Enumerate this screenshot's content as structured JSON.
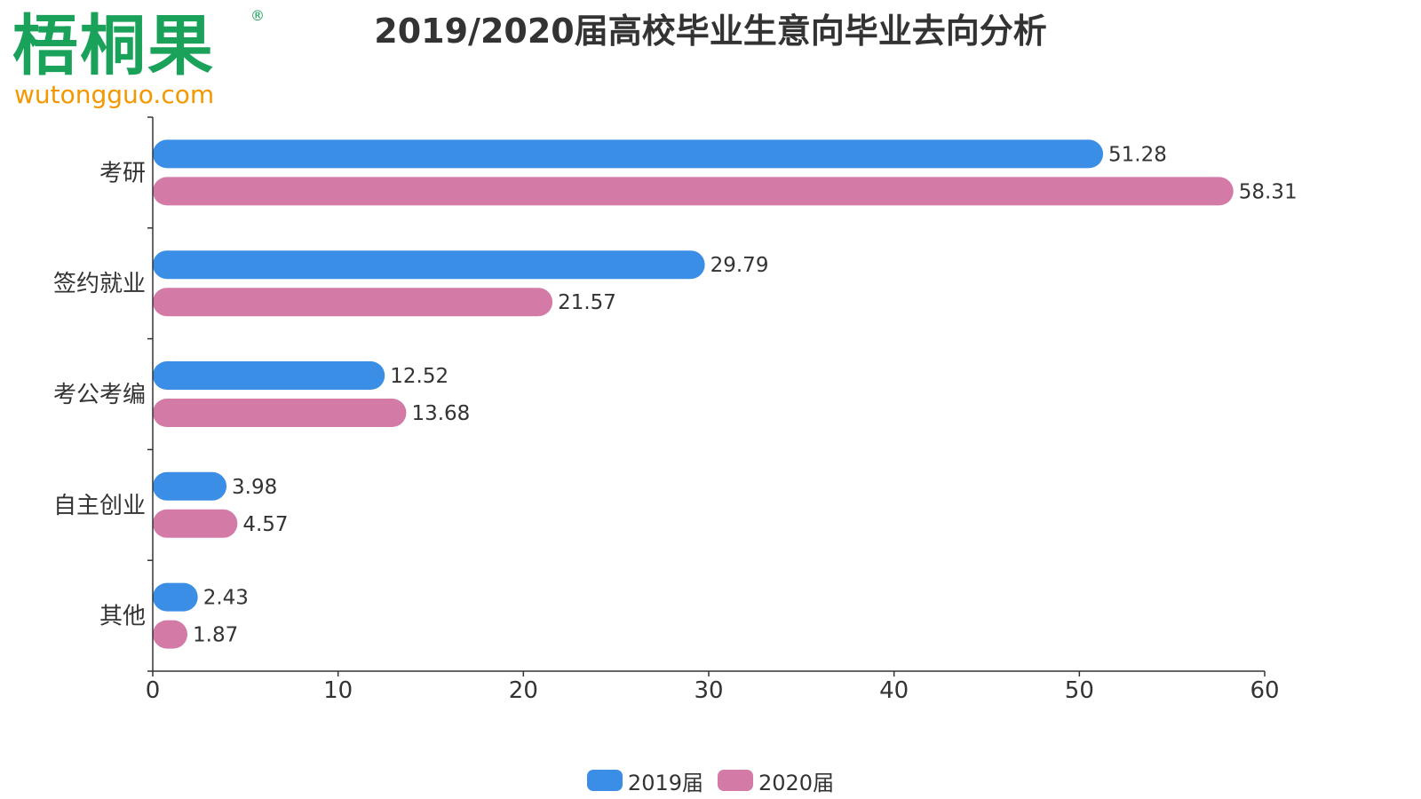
{
  "logo": {
    "text": "梧桐果",
    "registered": "®",
    "url": "wutongguo.com"
  },
  "colors": {
    "series_2019": "#3a8ee6",
    "series_2020": "#d37aa7",
    "text": "#333333",
    "axis": "#333333"
  },
  "chart_data": {
    "type": "bar",
    "orientation": "horizontal",
    "title": "2019/2020届高校毕业生意向毕业去向分析",
    "xlabel": "",
    "ylabel": "",
    "xlim": [
      0,
      60
    ],
    "x_ticks": [
      0,
      10,
      20,
      30,
      40,
      50,
      60
    ],
    "grid": false,
    "legend_position": "bottom",
    "categories": [
      "考研",
      "签约就业",
      "考公考编",
      "自主创业",
      "其他"
    ],
    "series": [
      {
        "name": "2019届",
        "values": [
          51.28,
          29.79,
          12.52,
          3.98,
          2.43
        ]
      },
      {
        "name": "2020届",
        "values": [
          58.31,
          21.57,
          13.68,
          4.57,
          1.87
        ]
      }
    ]
  }
}
